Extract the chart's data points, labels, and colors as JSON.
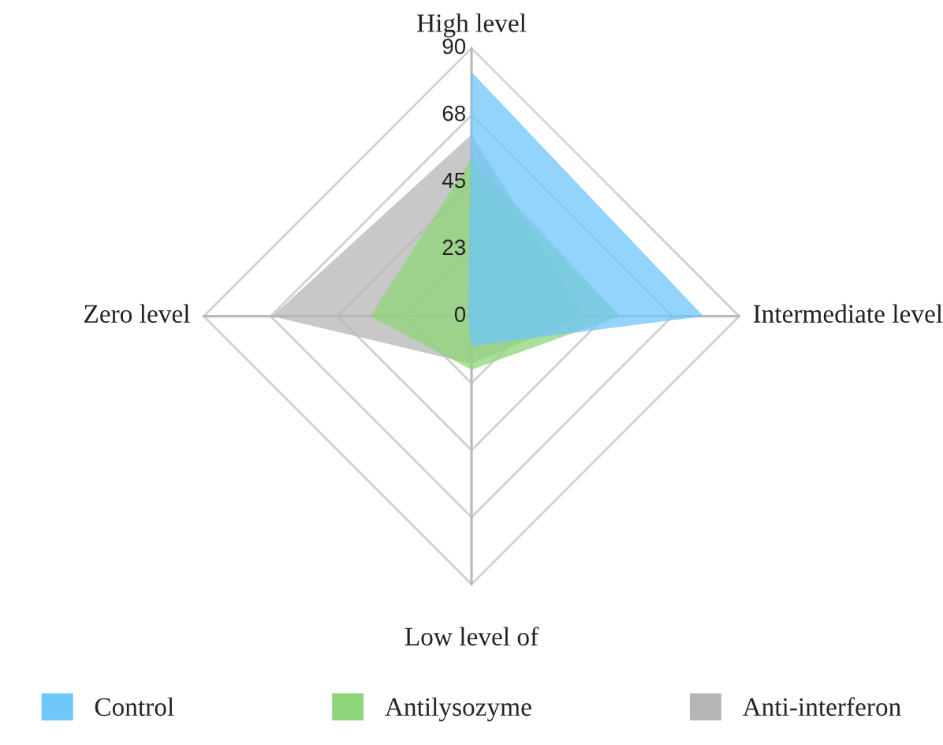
{
  "chart_data": {
    "type": "radar",
    "categories": [
      "High level",
      "Intermediate level",
      "Low level of",
      "Zero level"
    ],
    "ylim": [
      0,
      90
    ],
    "yticks": [
      0,
      {
        "value": 22.5,
        "label": "23"
      },
      {
        "value": 45,
        "label": "45"
      },
      {
        "value": 67.5,
        "label": "68"
      },
      90
    ],
    "legend": "bottom",
    "series": [
      {
        "name": "Control",
        "color": "#6ec6fb",
        "values": [
          82,
          78,
          10,
          1
        ]
      },
      {
        "name": "Antilysozyme",
        "color": "#8fd67a",
        "values": [
          53,
          50,
          18,
          34
        ]
      },
      {
        "name": "Anti-interferon",
        "color": "#b5b5b5",
        "values": [
          61,
          38,
          16,
          67
        ]
      }
    ]
  }
}
